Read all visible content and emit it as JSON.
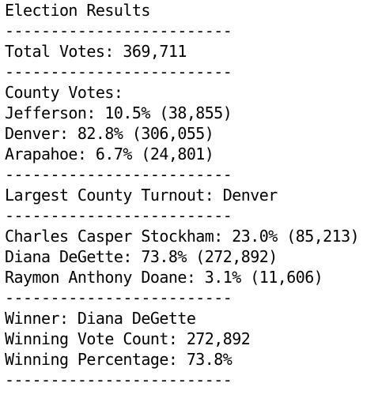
{
  "title": "Election Results",
  "separator": "-------------------------",
  "total_votes": "Total Votes: 369,711",
  "county_header": "County Votes:",
  "counties": [
    "Jefferson: 10.5% (38,855)",
    "Denver: 82.8% (306,055)",
    "Arapahoe: 6.7% (24,801)"
  ],
  "largest_county": "Largest County Turnout: Denver",
  "candidates": [
    "Charles Casper Stockham: 23.0% (85,213)",
    "Diana DeGette: 73.8% (272,892)",
    "Raymon Anthony Doane: 3.1% (11,606)"
  ],
  "winner": {
    "name": "Winner: Diana DeGette",
    "vote_count": "Winning Vote Count: 272,892",
    "percentage": "Winning Percentage: 73.8%"
  }
}
